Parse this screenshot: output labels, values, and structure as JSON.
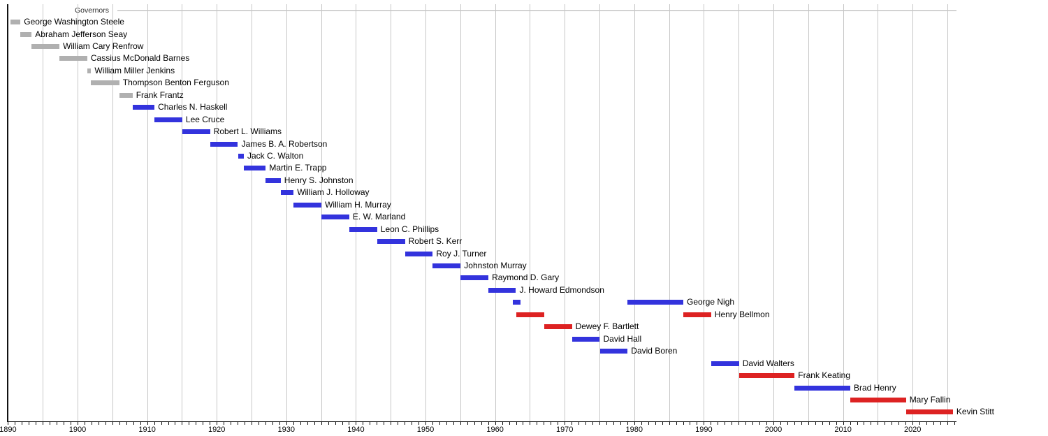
{
  "chart_data": {
    "type": "timeline",
    "title": "Governors",
    "x_axis": {
      "min": 1890,
      "max": 2026.35,
      "tick_label_years": [
        1890,
        1900,
        1910,
        1920,
        1930,
        1940,
        1950,
        1960,
        1970,
        1980,
        1990,
        2000,
        2010,
        2020
      ],
      "minor_tick_step": 1,
      "grid_step": 5,
      "grid_start": 1895,
      "grid_end": 2025
    },
    "legend_position": "top",
    "grid": true,
    "colors": {
      "territorial": "#b0b0b0",
      "democratic": "#3333dd",
      "republican": "#dd2222",
      "grid": "#c7c7c7",
      "axis": "#111111",
      "frame": "#a9a9a9"
    },
    "rows": [
      {
        "name": "George Washington Steele",
        "party": "territorial",
        "bars": [
          [
            1890.4,
            1891.8
          ]
        ]
      },
      {
        "name": "Abraham Jefferson Seay",
        "party": "territorial",
        "bars": [
          [
            1891.8,
            1893.4
          ]
        ]
      },
      {
        "name": "William Cary Renfrow",
        "party": "territorial",
        "bars": [
          [
            1893.4,
            1897.4
          ]
        ]
      },
      {
        "name": "Cassius McDonald Barnes",
        "party": "territorial",
        "bars": [
          [
            1897.4,
            1901.4
          ]
        ]
      },
      {
        "name": "William Miller Jenkins",
        "party": "territorial",
        "bars": [
          [
            1901.4,
            1901.95
          ]
        ]
      },
      {
        "name": "Thompson Benton Ferguson",
        "party": "territorial",
        "bars": [
          [
            1901.95,
            1906.0
          ]
        ]
      },
      {
        "name": "Frank Frantz",
        "party": "territorial",
        "bars": [
          [
            1906.0,
            1907.9
          ]
        ]
      },
      {
        "name": "Charles N. Haskell",
        "party": "democratic",
        "bars": [
          [
            1907.9,
            1911.05
          ]
        ]
      },
      {
        "name": "Lee Cruce",
        "party": "democratic",
        "bars": [
          [
            1911.05,
            1915.05
          ]
        ]
      },
      {
        "name": "Robert L. Williams",
        "party": "democratic",
        "bars": [
          [
            1915.05,
            1919.05
          ]
        ]
      },
      {
        "name": "James B. A. Robertson",
        "party": "democratic",
        "bars": [
          [
            1919.05,
            1923.05
          ]
        ]
      },
      {
        "name": "Jack C. Walton",
        "party": "democratic",
        "bars": [
          [
            1923.05,
            1923.9
          ]
        ]
      },
      {
        "name": "Martin E. Trapp",
        "party": "democratic",
        "bars": [
          [
            1923.9,
            1927.05
          ]
        ]
      },
      {
        "name": "Henry S. Johnston",
        "party": "democratic",
        "bars": [
          [
            1927.05,
            1929.2
          ]
        ]
      },
      {
        "name": "William J. Holloway",
        "party": "democratic",
        "bars": [
          [
            1929.2,
            1931.05
          ]
        ]
      },
      {
        "name": "William H. Murray",
        "party": "democratic",
        "bars": [
          [
            1931.05,
            1935.05
          ]
        ]
      },
      {
        "name": "E. W. Marland",
        "party": "democratic",
        "bars": [
          [
            1935.05,
            1939.05
          ]
        ]
      },
      {
        "name": "Leon C. Phillips",
        "party": "democratic",
        "bars": [
          [
            1939.05,
            1943.05
          ]
        ]
      },
      {
        "name": "Robert S. Kerr",
        "party": "democratic",
        "bars": [
          [
            1943.05,
            1947.05
          ]
        ]
      },
      {
        "name": "Roy J. Turner",
        "party": "democratic",
        "bars": [
          [
            1947.05,
            1951.05
          ]
        ]
      },
      {
        "name": "Johnston Murray",
        "party": "democratic",
        "bars": [
          [
            1951.05,
            1955.05
          ]
        ]
      },
      {
        "name": "Raymond D. Gary",
        "party": "democratic",
        "bars": [
          [
            1955.05,
            1959.05
          ]
        ]
      },
      {
        "name": "J. Howard Edmondson",
        "party": "democratic",
        "bars": [
          [
            1959.05,
            1963.0
          ]
        ]
      },
      {
        "name": "George Nigh",
        "party": "democratic",
        "bars": [
          [
            1962.5,
            1963.6
          ],
          [
            1979.05,
            1987.05
          ]
        ]
      },
      {
        "name": "Henry Bellmon",
        "party": "republican",
        "bars": [
          [
            1963.05,
            1967.05
          ],
          [
            1987.05,
            1991.05
          ]
        ]
      },
      {
        "name": "Dewey F. Bartlett",
        "party": "republican",
        "bars": [
          [
            1967.05,
            1971.05
          ]
        ]
      },
      {
        "name": "David Hall",
        "party": "democratic",
        "bars": [
          [
            1971.05,
            1975.05
          ]
        ]
      },
      {
        "name": "David Boren",
        "party": "democratic",
        "bars": [
          [
            1975.05,
            1979.05
          ]
        ]
      },
      {
        "name": "David Walters",
        "party": "democratic",
        "bars": [
          [
            1991.05,
            1995.05
          ]
        ]
      },
      {
        "name": "Frank Keating",
        "party": "republican",
        "bars": [
          [
            1995.05,
            2003.05
          ]
        ]
      },
      {
        "name": "Brad Henry",
        "party": "democratic",
        "bars": [
          [
            2003.05,
            2011.05
          ]
        ]
      },
      {
        "name": "Mary Fallin",
        "party": "republican",
        "bars": [
          [
            2011.05,
            2019.05
          ]
        ]
      },
      {
        "name": "Kevin Stitt",
        "party": "republican",
        "bars": [
          [
            2019.05,
            2025.8
          ]
        ]
      }
    ]
  }
}
